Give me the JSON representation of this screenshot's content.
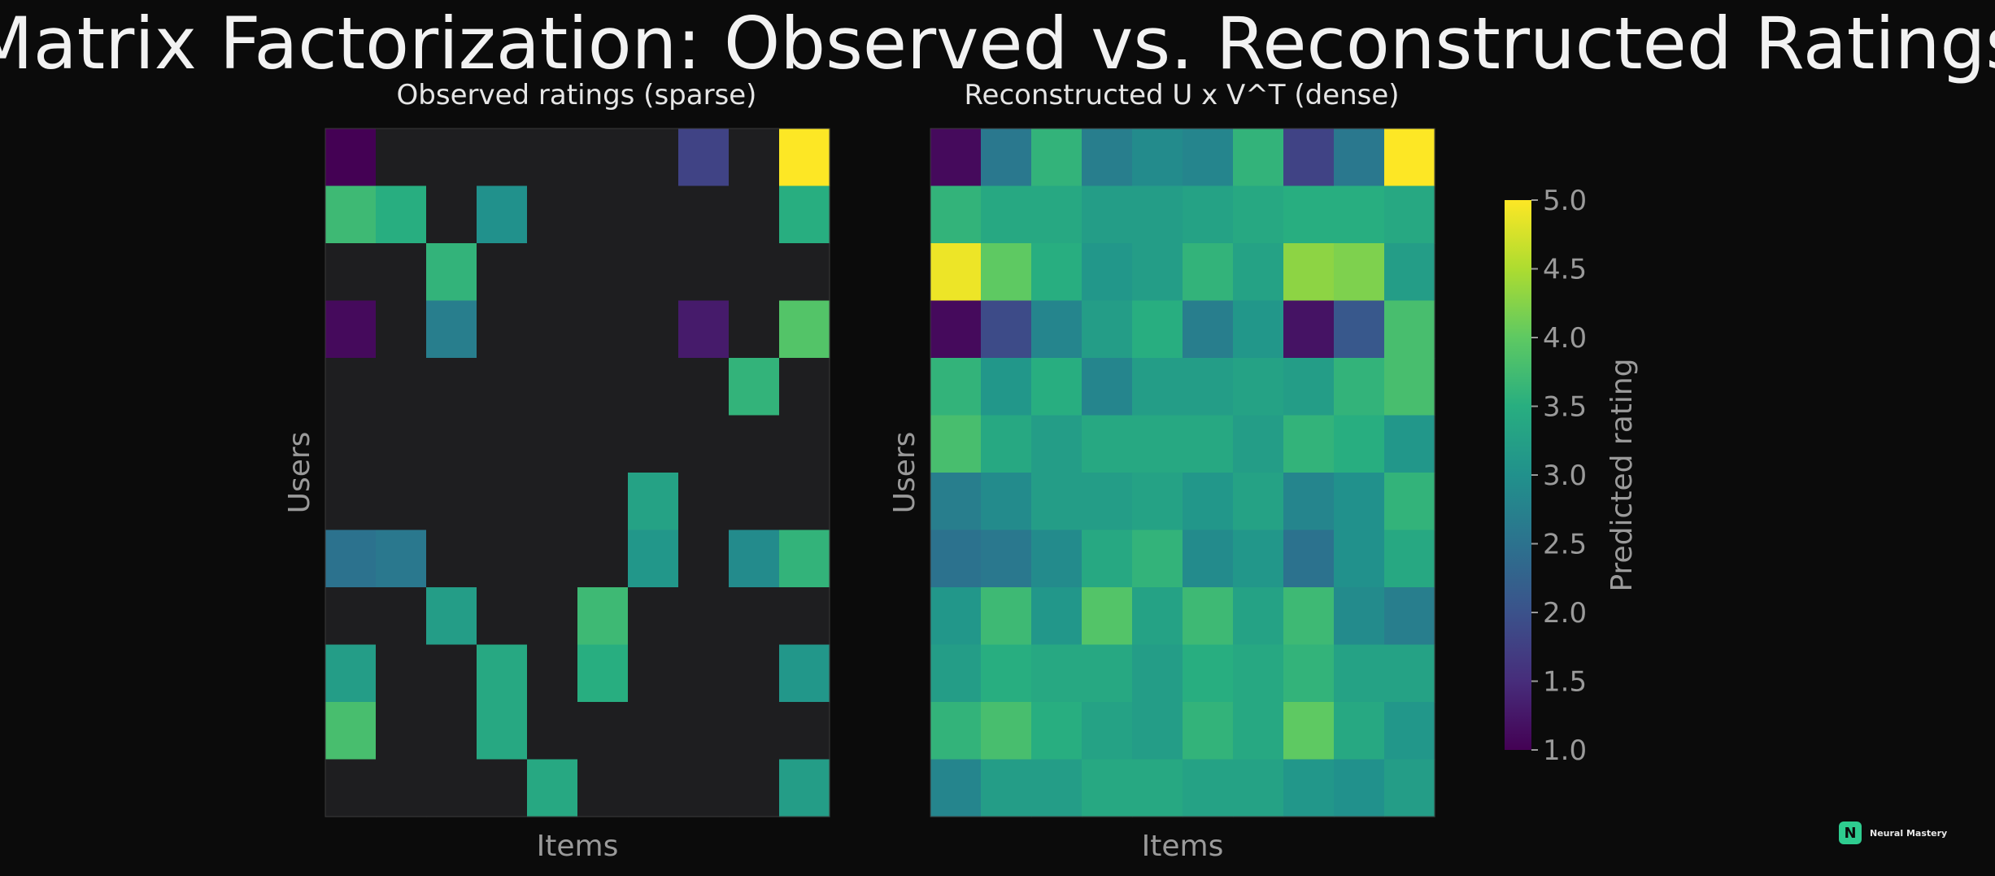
{
  "title": "Matrix Factorization: Observed vs. Reconstructed Ratings",
  "brand": {
    "mark": "N",
    "name": "Neural Mastery"
  },
  "colors": {
    "background": "#0b0b0b",
    "missing_cell": "#1e1e20",
    "text": "#bdbdbd",
    "title": "#f2f2f2"
  },
  "chart_data": [
    {
      "type": "heatmap",
      "title": "Observed ratings (sparse)",
      "xlabel": "Items",
      "ylabel": "Users",
      "colormap": "viridis",
      "value_range": [
        1,
        5
      ],
      "missing_color": "#1e1e20",
      "values": [
        [
          1.0,
          null,
          null,
          null,
          null,
          null,
          null,
          1.8,
          null,
          5.0
        ],
        [
          3.7,
          3.5,
          null,
          3.0,
          null,
          null,
          null,
          null,
          null,
          3.5
        ],
        [
          null,
          null,
          3.6,
          null,
          null,
          null,
          null,
          null,
          null,
          null
        ],
        [
          1.1,
          null,
          2.7,
          null,
          null,
          null,
          null,
          1.3,
          null,
          3.9
        ],
        [
          null,
          null,
          null,
          null,
          null,
          null,
          null,
          null,
          3.6,
          null
        ],
        [
          null,
          null,
          null,
          null,
          null,
          null,
          null,
          null,
          null,
          null
        ],
        [
          null,
          null,
          null,
          null,
          null,
          null,
          3.3,
          null,
          null,
          null
        ],
        [
          2.5,
          2.6,
          null,
          null,
          null,
          null,
          3.1,
          null,
          2.9,
          3.6
        ],
        [
          null,
          null,
          3.2,
          null,
          null,
          3.7,
          null,
          null,
          null,
          null
        ],
        [
          3.2,
          null,
          null,
          3.4,
          null,
          3.5,
          null,
          null,
          null,
          3.1
        ],
        [
          3.8,
          null,
          null,
          3.4,
          null,
          null,
          null,
          null,
          null,
          null
        ],
        [
          null,
          null,
          null,
          null,
          3.4,
          null,
          null,
          null,
          null,
          3.2
        ]
      ]
    },
    {
      "type": "heatmap",
      "title": "Reconstructed U x V^T (dense)",
      "xlabel": "Items",
      "ylabel": "Users",
      "colormap": "viridis",
      "value_range": [
        1,
        5
      ],
      "values": [
        [
          1.1,
          2.6,
          3.6,
          2.7,
          2.9,
          2.8,
          3.6,
          1.8,
          2.6,
          5.0
        ],
        [
          3.6,
          3.4,
          3.4,
          3.2,
          3.2,
          3.3,
          3.4,
          3.5,
          3.5,
          3.4
        ],
        [
          4.9,
          4.0,
          3.5,
          3.1,
          3.2,
          3.6,
          3.3,
          4.3,
          4.2,
          3.2
        ],
        [
          1.1,
          1.9,
          2.8,
          3.2,
          3.5,
          2.7,
          3.1,
          1.2,
          2.1,
          3.8
        ],
        [
          3.6,
          3.1,
          3.5,
          2.8,
          3.2,
          3.2,
          3.3,
          3.2,
          3.6,
          3.8
        ],
        [
          3.8,
          3.4,
          3.2,
          3.4,
          3.4,
          3.4,
          3.2,
          3.6,
          3.5,
          3.1
        ],
        [
          2.7,
          2.9,
          3.2,
          3.2,
          3.3,
          3.1,
          3.3,
          2.8,
          3.0,
          3.6
        ],
        [
          2.5,
          2.6,
          2.9,
          3.4,
          3.6,
          2.9,
          3.1,
          2.5,
          3.0,
          3.4
        ],
        [
          3.1,
          3.7,
          3.1,
          3.9,
          3.3,
          3.7,
          3.3,
          3.7,
          2.9,
          2.7
        ],
        [
          3.2,
          3.5,
          3.4,
          3.4,
          3.2,
          3.5,
          3.4,
          3.6,
          3.3,
          3.3
        ],
        [
          3.6,
          3.8,
          3.5,
          3.3,
          3.2,
          3.6,
          3.4,
          4.0,
          3.4,
          3.1
        ],
        [
          2.8,
          3.2,
          3.2,
          3.4,
          3.4,
          3.3,
          3.3,
          3.1,
          3.0,
          3.2
        ]
      ]
    }
  ],
  "colorbar": {
    "label": "Predicted rating",
    "ticks": [
      "1.0",
      "1.5",
      "2.0",
      "2.5",
      "3.0",
      "3.5",
      "4.0",
      "4.5",
      "5.0"
    ],
    "range": [
      1,
      5
    ]
  }
}
